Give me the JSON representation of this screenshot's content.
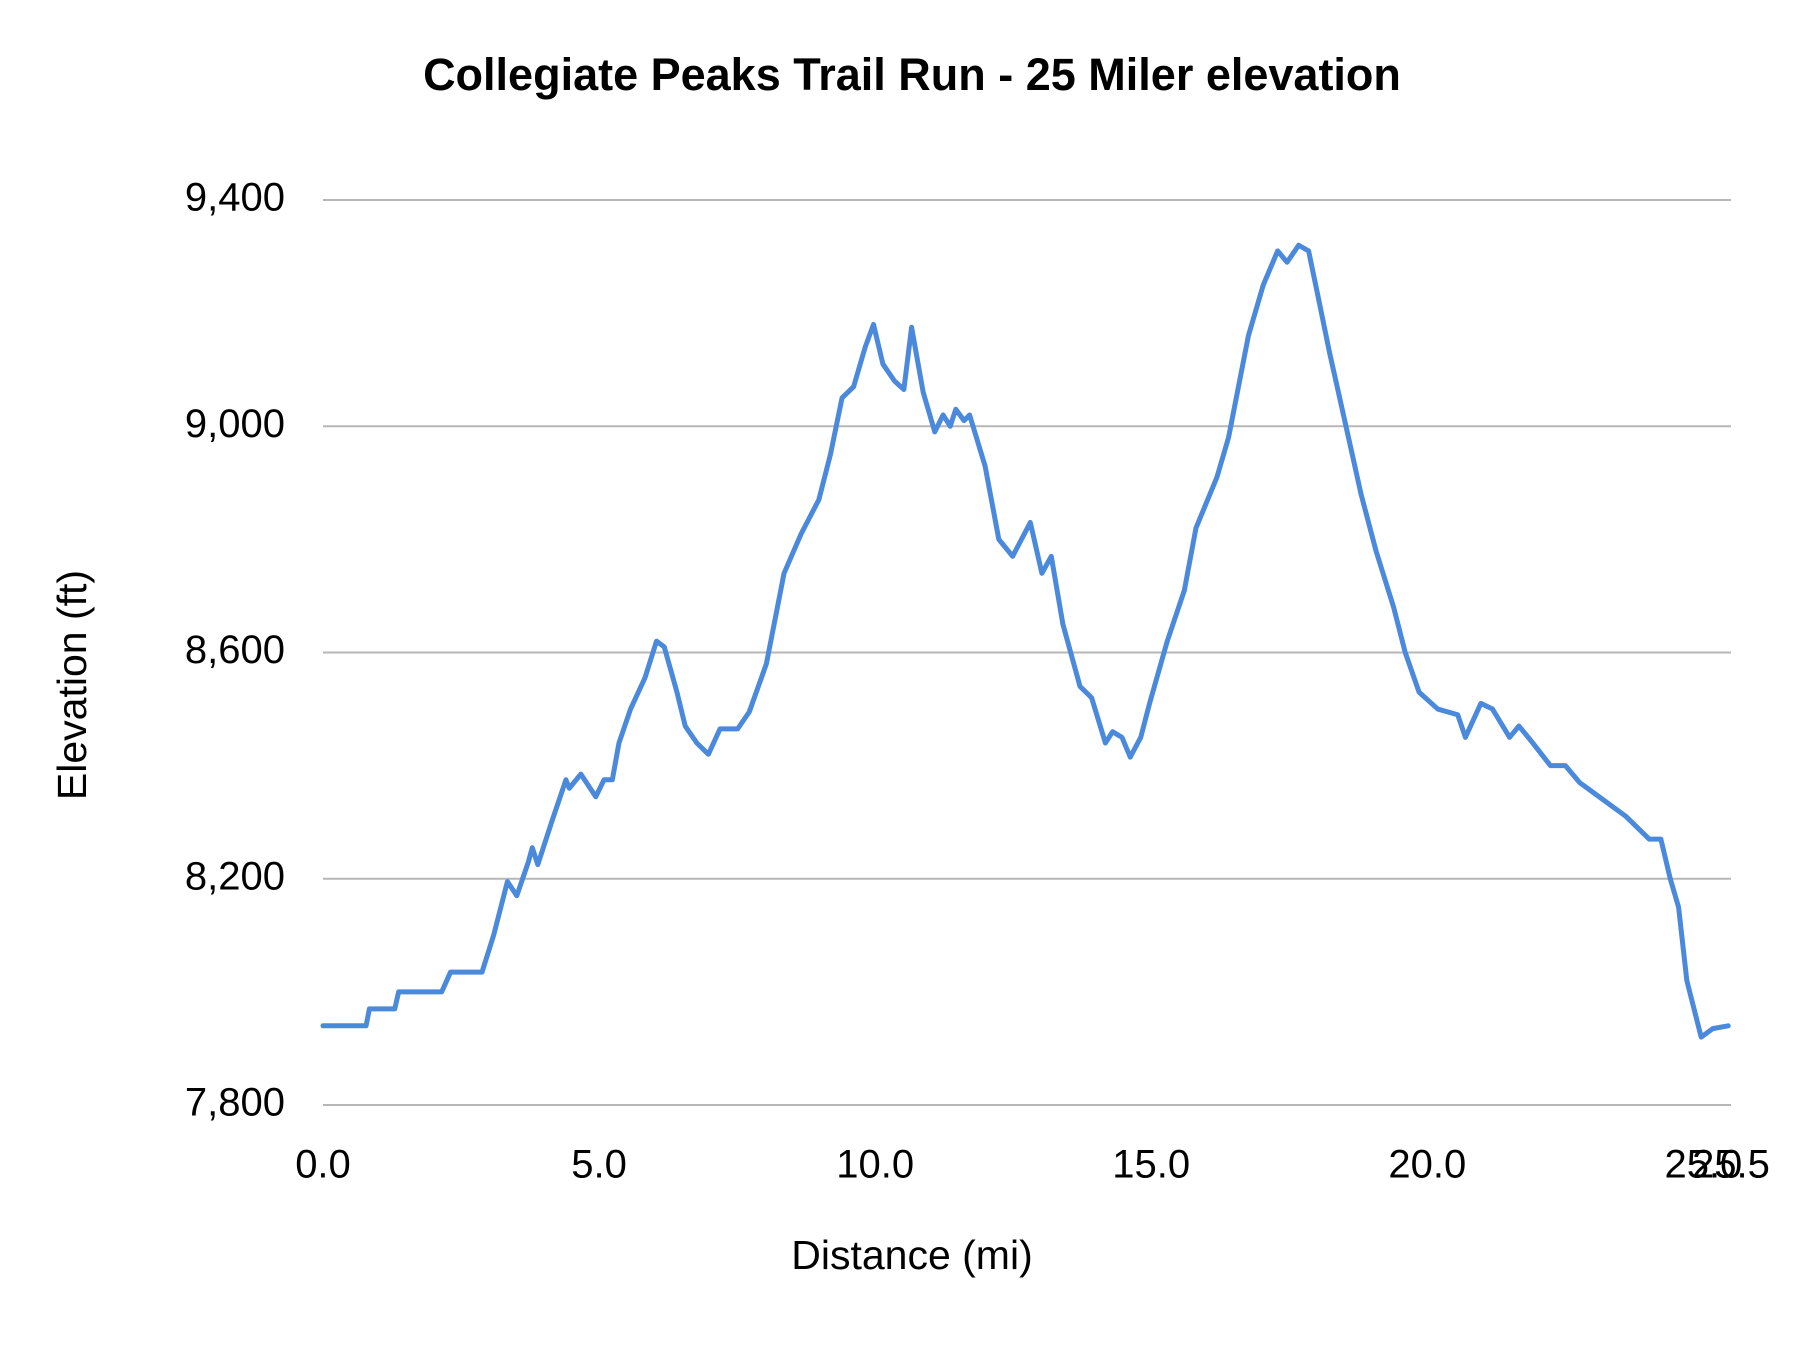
{
  "chart_data": {
    "type": "line",
    "title": "Collegiate Peaks Trail Run - 25 Miler elevation",
    "x_label": "Distance (mi)",
    "y_label": "Elevation (ft)",
    "color": "#4a89dc",
    "grid": true,
    "xlim": [
      0,
      25.5
    ],
    "xticks": [
      {
        "value": 0,
        "label": "0.0"
      },
      {
        "value": 5,
        "label": "5.0"
      },
      {
        "value": 10,
        "label": "10.0"
      },
      {
        "value": 15,
        "label": "15.0"
      },
      {
        "value": 20,
        "label": "20.0"
      },
      {
        "value": 25,
        "label": "25.0"
      },
      25.5
    ],
    "ylim": [
      7800,
      9400
    ],
    "yticks": [
      {
        "value": 7800,
        "label": "7,800"
      },
      {
        "value": 8200,
        "label": "8,200"
      },
      {
        "value": 8600,
        "label": "8,600"
      },
      {
        "value": 9000,
        "label": "9,000"
      },
      {
        "value": 9400,
        "label": "9,400"
      }
    ],
    "x": [
      0,
      0.78,
      0.84,
      1.3,
      1.37,
      2.15,
      2.31,
      2.88,
      3.09,
      3.34,
      3.51,
      3.72,
      3.79,
      3.89,
      4.14,
      4.4,
      4.46,
      4.67,
      4.94,
      5.09,
      5.24,
      5.36,
      5.57,
      5.83,
      6.04,
      6.18,
      6.41,
      6.56,
      6.77,
      6.98,
      7.19,
      7.51,
      7.72,
      8.03,
      8.35,
      8.66,
      8.98,
      9.19,
      9.4,
      9.61,
      9.82,
      9.97,
      10.14,
      10.35,
      10.52,
      10.66,
      10.87,
      11.08,
      11.23,
      11.36,
      11.46,
      11.61,
      11.71,
      11.99,
      12.24,
      12.49,
      12.81,
      13.02,
      13.19,
      13.4,
      13.71,
      13.92,
      14.17,
      14.3,
      14.47,
      14.62,
      14.81,
      14.97,
      15.29,
      15.6,
      15.81,
      16.19,
      16.4,
      16.76,
      17.03,
      17.29,
      17.46,
      17.67,
      17.85,
      18.02,
      18.23,
      18.55,
      18.8,
      19.07,
      19.39,
      19.6,
      19.85,
      20.19,
      20.55,
      20.69,
      20.97,
      21.18,
      21.49,
      21.66,
      21.91,
      22.23,
      22.5,
      22.76,
      23.18,
      23.6,
      24.02,
      24.23,
      24.4,
      24.55,
      24.7,
      24.96,
      25.17,
      25.45
    ],
    "values": [
      7940,
      7940,
      7970,
      7970,
      8000,
      8000,
      8035,
      8035,
      8100,
      8195,
      8170,
      8230,
      8255,
      8225,
      8300,
      8375,
      8360,
      8385,
      8345,
      8375,
      8375,
      8440,
      8500,
      8555,
      8620,
      8610,
      8530,
      8470,
      8440,
      8420,
      8465,
      8465,
      8495,
      8580,
      8740,
      8810,
      8870,
      8950,
      9050,
      9070,
      9140,
      9180,
      9110,
      9080,
      9065,
      9175,
      9060,
      8990,
      9020,
      9000,
      9030,
      9010,
      9020,
      8930,
      8800,
      8770,
      8830,
      8740,
      8770,
      8650,
      8540,
      8520,
      8440,
      8460,
      8450,
      8415,
      8450,
      8510,
      8620,
      8710,
      8820,
      8910,
      8980,
      9160,
      9250,
      9310,
      9290,
      9320,
      9310,
      9230,
      9130,
      8990,
      8880,
      8780,
      8680,
      8600,
      8530,
      8500,
      8490,
      8450,
      8510,
      8500,
      8450,
      8470,
      8440,
      8400,
      8400,
      8370,
      8340,
      8310,
      8270,
      8270,
      8200,
      8150,
      8020,
      7920,
      7935,
      7940
    ]
  }
}
